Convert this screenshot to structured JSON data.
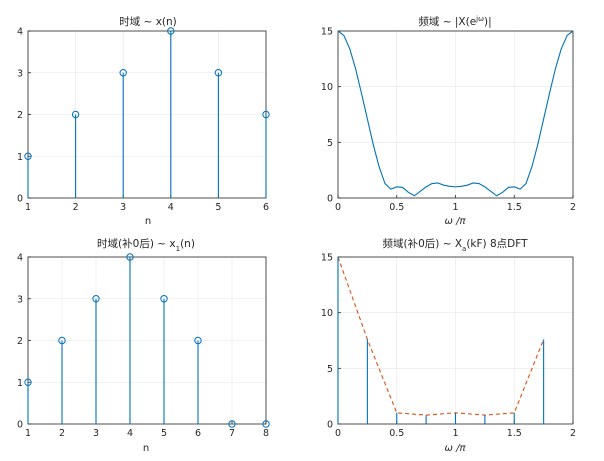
{
  "chart_data": [
    {
      "type": "stem",
      "title": "时域 ~ x(n)",
      "xlabel": "n",
      "ylabel": "",
      "xlim": [
        1,
        6
      ],
      "ylim": [
        0,
        4
      ],
      "xticks": [
        "1",
        "2",
        "3",
        "4",
        "5",
        "6"
      ],
      "yticks": [
        "0",
        "1",
        "2",
        "3",
        "4"
      ],
      "x": [
        1,
        2,
        3,
        4,
        5,
        6
      ],
      "values": [
        1,
        2,
        3,
        4,
        3,
        2
      ],
      "grid": true
    },
    {
      "type": "line",
      "title": "频域 ~ |X(e^jω)|",
      "xlabel": "ω /π",
      "ylabel": "",
      "xlim": [
        0,
        2
      ],
      "ylim": [
        0,
        15
      ],
      "xticks": [
        "0",
        "0.5",
        "1",
        "1.5",
        "2"
      ],
      "yticks": [
        "0",
        "5",
        "10",
        "15"
      ],
      "x": [
        0,
        0.05,
        0.1,
        0.15,
        0.2,
        0.25,
        0.3,
        0.35,
        0.4,
        0.45,
        0.5,
        0.55,
        0.6,
        0.65,
        0.7,
        0.75,
        0.8,
        0.85,
        0.9,
        0.95,
        1.0,
        1.05,
        1.1,
        1.15,
        1.2,
        1.25,
        1.3,
        1.35,
        1.4,
        1.45,
        1.5,
        1.55,
        1.6,
        1.65,
        1.7,
        1.75,
        1.8,
        1.85,
        1.9,
        1.95,
        2.0
      ],
      "values": [
        15,
        14.6,
        13.4,
        11.6,
        9.4,
        7.1,
        4.8,
        2.8,
        1.3,
        0.8,
        1.0,
        0.95,
        0.5,
        0.2,
        0.6,
        1.0,
        1.3,
        1.35,
        1.15,
        1.05,
        1.0,
        1.05,
        1.15,
        1.35,
        1.3,
        1.0,
        0.6,
        0.2,
        0.5,
        0.95,
        1.0,
        0.8,
        1.3,
        2.8,
        4.8,
        7.1,
        9.4,
        11.6,
        13.4,
        14.6,
        15
      ],
      "grid": true
    },
    {
      "type": "stem",
      "title": "时域(补0后) ~ x1(n)",
      "xlabel": "n",
      "ylabel": "",
      "xlim": [
        1,
        8
      ],
      "ylim": [
        0,
        4
      ],
      "xticks": [
        "1",
        "2",
        "3",
        "4",
        "5",
        "6",
        "7",
        "8"
      ],
      "yticks": [
        "0",
        "1",
        "2",
        "3",
        "4"
      ],
      "x": [
        1,
        2,
        3,
        4,
        5,
        6,
        7,
        8
      ],
      "values": [
        1,
        2,
        3,
        4,
        3,
        2,
        0,
        0
      ],
      "grid": true
    },
    {
      "type": "stem",
      "title": "频域(补0后) ~ Xa(kF) 8点DFT",
      "xlabel": "ω /π",
      "ylabel": "",
      "xlim": [
        0,
        2
      ],
      "ylim": [
        0,
        15
      ],
      "xticks": [
        "0",
        "0.5",
        "1",
        "1.5",
        "2"
      ],
      "yticks": [
        "0",
        "5",
        "10",
        "15"
      ],
      "x": [
        0,
        0.25,
        0.5,
        0.75,
        1.0,
        1.25,
        1.5,
        1.75
      ],
      "values": [
        15,
        7.6,
        1.0,
        0.8,
        1.0,
        0.8,
        1.0,
        7.6
      ],
      "dashed_envelope": true,
      "grid": true
    }
  ]
}
